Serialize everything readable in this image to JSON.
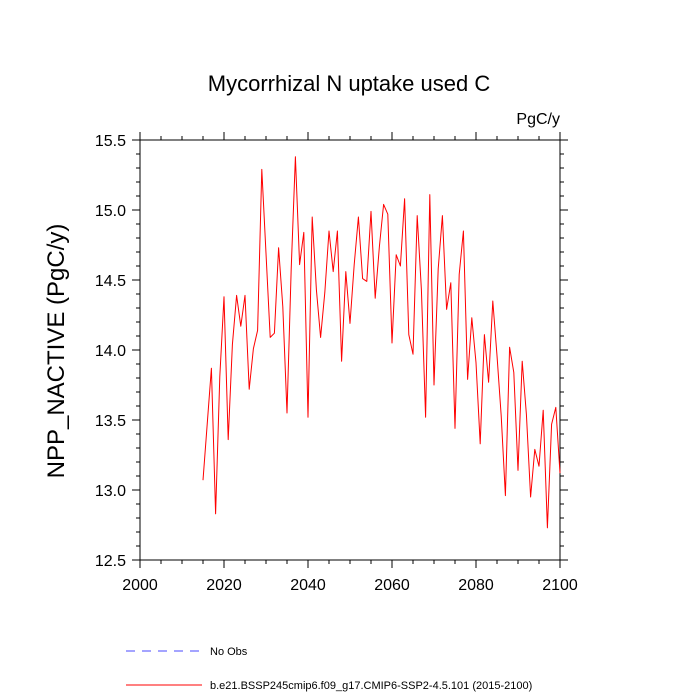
{
  "chart_data": {
    "type": "line",
    "title": "Mycorrhizal N uptake used C",
    "units": "PgC/y",
    "xlabel": "",
    "ylabel": "NPP_NACTIVE  (PgC/y)",
    "xlim": [
      2000,
      2100
    ],
    "ylim": [
      12.5,
      15.5
    ],
    "xticks": [
      2000,
      2020,
      2040,
      2060,
      2080,
      2100
    ],
    "xtick_labels": [
      "2000",
      "2020",
      "2040",
      "2060",
      "2080",
      "2100"
    ],
    "yticks": [
      12.5,
      13.0,
      13.5,
      14.0,
      14.5,
      15.0,
      15.5
    ],
    "ytick_labels": [
      "12.5",
      "13.0",
      "13.5",
      "14.0",
      "14.5",
      "15.0",
      "15.5"
    ],
    "series": [
      {
        "name": "b.e21.BSSP245cmip6.f09_g17.CMIP6-SSP2-4.5.101 (2015-2100)",
        "color": "#ff0000",
        "x": [
          2015,
          2016,
          2017,
          2018,
          2019,
          2020,
          2021,
          2022,
          2023,
          2024,
          2025,
          2026,
          2027,
          2028,
          2029,
          2030,
          2031,
          2032,
          2033,
          2034,
          2035,
          2036,
          2037,
          2038,
          2039,
          2040,
          2041,
          2042,
          2043,
          2044,
          2045,
          2046,
          2047,
          2048,
          2049,
          2050,
          2051,
          2052,
          2053,
          2054,
          2055,
          2056,
          2057,
          2058,
          2059,
          2060,
          2061,
          2062,
          2063,
          2064,
          2065,
          2066,
          2067,
          2068,
          2069,
          2070,
          2071,
          2072,
          2073,
          2074,
          2075,
          2076,
          2077,
          2078,
          2079,
          2080,
          2081,
          2082,
          2083,
          2084,
          2085,
          2086,
          2087,
          2088,
          2089,
          2090,
          2091,
          2092,
          2093,
          2094,
          2095,
          2096,
          2097,
          2098,
          2099,
          2100
        ],
        "values": [
          13.07,
          13.47,
          13.87,
          12.83,
          13.81,
          14.38,
          13.36,
          14.04,
          14.39,
          14.17,
          14.39,
          13.72,
          14.01,
          14.14,
          15.29,
          14.69,
          14.09,
          14.12,
          14.73,
          14.31,
          13.55,
          14.58,
          15.38,
          14.61,
          14.84,
          13.52,
          14.95,
          14.43,
          14.09,
          14.41,
          14.85,
          14.56,
          14.85,
          13.92,
          14.56,
          14.19,
          14.61,
          14.95,
          14.51,
          14.49,
          14.99,
          14.37,
          14.74,
          15.04,
          14.97,
          14.05,
          14.68,
          14.6,
          15.08,
          14.11,
          13.97,
          14.96,
          14.43,
          13.52,
          15.11,
          13.75,
          14.58,
          14.96,
          14.29,
          14.48,
          13.44,
          14.54,
          14.85,
          13.79,
          14.23,
          13.91,
          13.33,
          14.11,
          13.77,
          14.35,
          13.96,
          13.53,
          12.96,
          14.02,
          13.84,
          13.14,
          13.92,
          13.54,
          12.95,
          13.29,
          13.17,
          13.57,
          12.73,
          13.47,
          13.59,
          13.12
        ]
      }
    ],
    "legend": {
      "placement": "bottom",
      "entries": [
        {
          "label": "No Obs",
          "color": "#4a4aff",
          "style": "dashed"
        },
        {
          "label": "b.e21.BSSP245cmip6.f09_g17.CMIP6-SSP2-4.5.101 (2015-2100)",
          "color": "#ff0000",
          "style": "solid"
        }
      ]
    }
  }
}
